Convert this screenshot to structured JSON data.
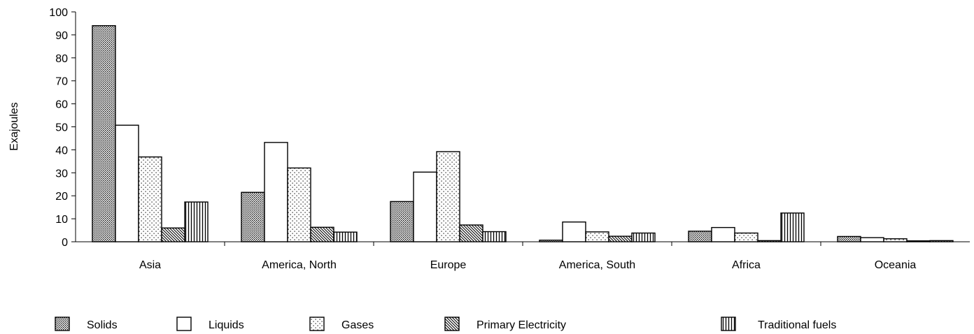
{
  "chart_data": {
    "type": "bar",
    "title": "",
    "xlabel": "",
    "ylabel": "Exajoules",
    "ylim": [
      0,
      100
    ],
    "yticks": [
      0,
      10,
      20,
      30,
      40,
      50,
      60,
      70,
      80,
      90,
      100
    ],
    "grid": false,
    "legend_position": "bottom",
    "categories": [
      "Asia",
      "America, North",
      "Europe",
      "America, South",
      "Africa",
      "Oceania"
    ],
    "series": [
      {
        "name": "Solids",
        "pattern": "dots-dense",
        "values": [
          94,
          21.5,
          17.5,
          0.7,
          4.6,
          2.3
        ]
      },
      {
        "name": "Liquids",
        "pattern": "none",
        "values": [
          50.7,
          43.2,
          30.3,
          8.6,
          6.2,
          1.8
        ]
      },
      {
        "name": "Gases",
        "pattern": "dots-sparse",
        "values": [
          36.9,
          32.1,
          39.2,
          4.3,
          3.8,
          1.3
        ]
      },
      {
        "name": "Primary Electricity",
        "pattern": "diagonal-hatch",
        "values": [
          6,
          6.3,
          7.3,
          2.4,
          0.5,
          0.4
        ]
      },
      {
        "name": "Traditional fuels",
        "pattern": "vertical-lines",
        "values": [
          17.3,
          4.2,
          4.4,
          3.8,
          12.5,
          0.5
        ]
      }
    ]
  }
}
